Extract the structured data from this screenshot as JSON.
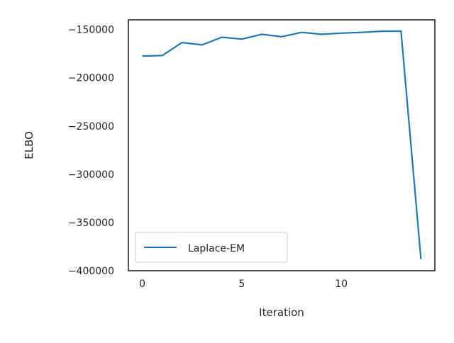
{
  "chart_data": {
    "type": "line",
    "title": "",
    "xlabel": "Iteration",
    "ylabel": "ELBO",
    "xlim": [
      -0.7,
      14.7
    ],
    "ylim": [
      -400000,
      -140000
    ],
    "grid": false,
    "legend_position": "lower-left",
    "x_ticks": [
      0,
      5,
      10
    ],
    "x_tick_labels": [
      "0",
      "5",
      "10"
    ],
    "y_ticks": [
      -150000,
      -200000,
      -250000,
      -300000,
      -350000,
      -400000
    ],
    "y_tick_labels": [
      "−150000",
      "−200000",
      "−250000",
      "−300000",
      "−350000",
      "−400000"
    ],
    "series": [
      {
        "name": "Laplace-EM",
        "color": "#1f77b4",
        "x": [
          0,
          1,
          2,
          3,
          4,
          5,
          6,
          7,
          8,
          9,
          10,
          11,
          12,
          13,
          14
        ],
        "y": [
          -177500,
          -177000,
          -163500,
          -166000,
          -158000,
          -160000,
          -155000,
          -157500,
          -153000,
          -155000,
          -153800,
          -153000,
          -151800,
          -151700,
          -388000
        ]
      }
    ]
  }
}
